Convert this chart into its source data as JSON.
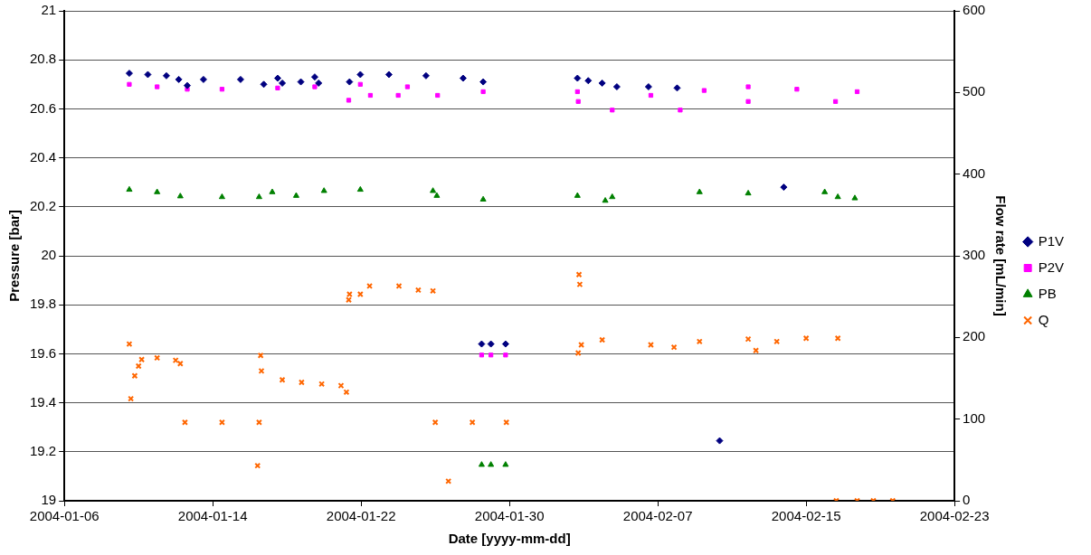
{
  "chart_data": {
    "type": "scatter",
    "xlabel": "Date [yyyy-mm-dd]",
    "ylabel": "Pressure [bar]",
    "y2label": "Flow rate [mL/min]",
    "xlim": [
      "2004-01-06",
      "2004-02-23"
    ],
    "xticks": [
      "2004-01-06",
      "2004-01-14",
      "2004-01-22",
      "2004-01-30",
      "2004-02-07",
      "2004-02-15",
      "2004-02-23"
    ],
    "ylim": [
      19,
      21
    ],
    "yticks": [
      19,
      19.2,
      19.4,
      19.6,
      19.8,
      20,
      20.2,
      20.4,
      20.6,
      20.8,
      21
    ],
    "y2lim": [
      0,
      600
    ],
    "y2ticks": [
      0,
      100,
      200,
      300,
      400,
      500,
      600
    ],
    "grid": "y",
    "legend": "right",
    "series": [
      {
        "name": "P1V",
        "color": "#000080",
        "marker": "diamond",
        "x": [
          "2004-01-09T12:00",
          "2004-01-10T12:00",
          "2004-01-11T12:00",
          "2004-01-12T04:00",
          "2004-01-12T15:00",
          "2004-01-13T12:00",
          "2004-01-15T12:00",
          "2004-01-16T18:00",
          "2004-01-17T12:00",
          "2004-01-17T18:00",
          "2004-01-18T18:00",
          "2004-01-19T12:00",
          "2004-01-19T17:00",
          "2004-01-21T09:00",
          "2004-01-21T23:00",
          "2004-01-23T12:00",
          "2004-01-25T12:00",
          "2004-01-27T12:00",
          "2004-01-28T14:00",
          "2004-01-28T12:00",
          "2004-01-29T00:00",
          "2004-01-29T19:00",
          "2004-02-02T16:00",
          "2004-02-03T06:00",
          "2004-02-04T00:00",
          "2004-02-04T19:00",
          "2004-02-06T12:00",
          "2004-02-08T01:00",
          "2004-02-10T08:00",
          "2004-02-13T19:00"
        ],
        "values": [
          20.745,
          20.74,
          20.735,
          20.72,
          20.695,
          20.72,
          20.72,
          20.7,
          20.725,
          20.705,
          20.71,
          20.73,
          20.705,
          20.71,
          20.74,
          20.74,
          20.735,
          20.725,
          20.71,
          19.64,
          19.64,
          19.64,
          20.725,
          20.715,
          20.705,
          20.69,
          20.69,
          20.685,
          19.245,
          20.28
        ]
      },
      {
        "name": "P2V",
        "color": "#ff00ff",
        "marker": "square",
        "x": [
          "2004-01-09T12:00",
          "2004-01-11T00:00",
          "2004-01-12T15:00",
          "2004-01-14T12:00",
          "2004-01-17T12:00",
          "2004-01-19T12:00",
          "2004-01-21T23:00",
          "2004-01-24T12:00",
          "2004-01-28T14:00",
          "2004-01-21T08:00",
          "2004-01-22T12:00",
          "2004-01-24T00:00",
          "2004-01-26T03:00",
          "2004-01-28T12:00",
          "2004-01-29T00:00",
          "2004-01-29T19:00",
          "2004-02-02T16:00",
          "2004-02-06T15:00",
          "2004-02-09T12:00",
          "2004-02-11T21:00",
          "2004-02-14T12:00",
          "2004-02-17T18:00",
          "2004-02-02T17:00",
          "2004-02-04T13:00",
          "2004-02-08T05:00",
          "2004-02-11T21:00",
          "2004-02-16T14:00"
        ],
        "values": [
          20.7,
          20.69,
          20.68,
          20.68,
          20.685,
          20.69,
          20.7,
          20.69,
          20.67,
          20.635,
          20.655,
          20.655,
          20.655,
          19.595,
          19.595,
          19.595,
          20.67,
          20.655,
          20.675,
          20.69,
          20.68,
          20.67,
          20.63,
          20.595,
          20.595,
          20.63,
          20.63
        ]
      },
      {
        "name": "PB",
        "color": "#008000",
        "marker": "triangle",
        "x": [
          "2004-01-09T12:00",
          "2004-01-11T00:00",
          "2004-01-12T06:00",
          "2004-01-14T12:00",
          "2004-01-16T12:00",
          "2004-01-17T05:00",
          "2004-01-18T12:00",
          "2004-01-20T00:00",
          "2004-01-21T23:00",
          "2004-01-25T21:00",
          "2004-01-26T02:00",
          "2004-01-28T14:00",
          "2004-01-28T12:00",
          "2004-01-29T00:00",
          "2004-01-29T19:00",
          "2004-02-02T16:00",
          "2004-02-04T04:00",
          "2004-02-04T13:00",
          "2004-02-09T06:00",
          "2004-02-11T21:00",
          "2004-02-16T00:00",
          "2004-02-16T17:00",
          "2004-02-17T15:00"
        ],
        "values": [
          20.27,
          20.26,
          20.243,
          20.24,
          20.24,
          20.26,
          20.245,
          20.265,
          20.27,
          20.265,
          20.245,
          20.23,
          19.147,
          19.147,
          19.147,
          20.245,
          20.225,
          20.24,
          20.26,
          20.255,
          20.26,
          20.24,
          20.235
        ]
      },
      {
        "name": "Q",
        "color": "#ff6600",
        "marker": "cross",
        "axis": "y2",
        "x": [
          "2004-01-09T12:00",
          "2004-01-09T14:00",
          "2004-01-09T19:00",
          "2004-01-10T00:00",
          "2004-01-10T04:00",
          "2004-01-11T00:00",
          "2004-01-12T00:00",
          "2004-01-12T06:00",
          "2004-01-12T12:00",
          "2004-01-14T12:00",
          "2004-01-16T12:00",
          "2004-01-16T10:00",
          "2004-01-16T14:00",
          "2004-01-16T15:00",
          "2004-01-17T18:00",
          "2004-01-18T19:00",
          "2004-01-19T21:00",
          "2004-01-20T22:00",
          "2004-01-21T05:00",
          "2004-01-21T08:00",
          "2004-01-21T09:00",
          "2004-01-21T23:00",
          "2004-01-22T11:00",
          "2004-01-24T01:00",
          "2004-01-25T02:00",
          "2004-01-25T21:00",
          "2004-01-26T00:00",
          "2004-01-28T00:00",
          "2004-01-29T20:00",
          "2004-01-26T17:00",
          "2004-02-02T17:00",
          "2004-02-02T18:00",
          "2004-02-02T19:00",
          "2004-02-02T21:00",
          "2004-02-04T00:00",
          "2004-02-06T15:00",
          "2004-02-07T21:00",
          "2004-02-09T06:00",
          "2004-02-11T21:00",
          "2004-02-12T07:00",
          "2004-02-13T10:00",
          "2004-02-15T00:00",
          "2004-02-16T17:00",
          "2004-02-16T15:00",
          "2004-02-17T18:00",
          "2004-02-18T15:00",
          "2004-02-19T16:00"
        ],
        "values": [
          192,
          125,
          153,
          165,
          173,
          175,
          172,
          168,
          96,
          96,
          96,
          43,
          178,
          159,
          148,
          145,
          143,
          141,
          133,
          246,
          253,
          253,
          263,
          263,
          258,
          257,
          96,
          96,
          96,
          24,
          181,
          277,
          265,
          191,
          197,
          191,
          188,
          195,
          198,
          184,
          195,
          199,
          199,
          0,
          0,
          0,
          0
        ]
      }
    ]
  }
}
